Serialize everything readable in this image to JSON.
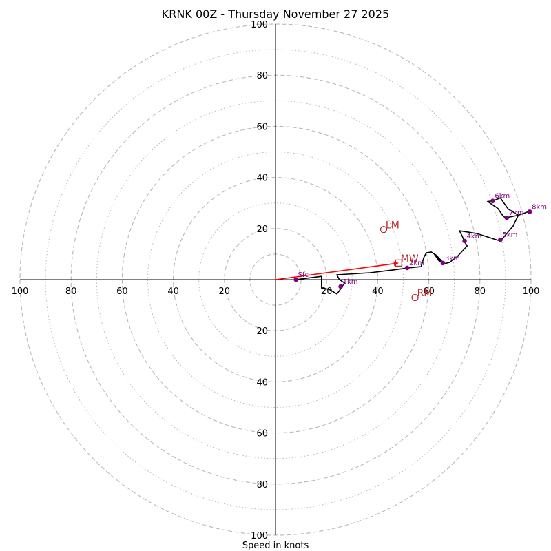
{
  "chart_data": {
    "type": "hodograph",
    "title": "KRNK 00Z - Thursday November 27 2025",
    "xlabel": "Speed in knots",
    "range": [
      -100,
      100
    ],
    "rings_dashed": [
      10,
      20,
      40,
      60,
      80,
      100
    ],
    "rings_dotted": [
      30,
      50,
      70,
      90
    ],
    "x_ticks": [
      {
        "value": -100,
        "label": "100"
      },
      {
        "value": -80,
        "label": "80"
      },
      {
        "value": -60,
        "label": "60"
      },
      {
        "value": -40,
        "label": "40"
      },
      {
        "value": -20,
        "label": "20"
      },
      {
        "value": 20,
        "label": "20"
      },
      {
        "value": 40,
        "label": "40"
      },
      {
        "value": 60,
        "label": "60"
      },
      {
        "value": 80,
        "label": "80"
      },
      {
        "value": 100,
        "label": "100"
      }
    ],
    "y_ticks": [
      {
        "value": 100,
        "label": "100"
      },
      {
        "value": 80,
        "label": "80"
      },
      {
        "value": 60,
        "label": "60"
      },
      {
        "value": 40,
        "label": "40"
      },
      {
        "value": 20,
        "label": "20"
      },
      {
        "value": -20,
        "label": "20"
      },
      {
        "value": -40,
        "label": "40"
      },
      {
        "value": -60,
        "label": "60"
      },
      {
        "value": -80,
        "label": "80"
      },
      {
        "value": -100,
        "label": "100"
      }
    ],
    "trace": [
      [
        8,
        0
      ],
      [
        12,
        0.5
      ],
      [
        18,
        1.3
      ],
      [
        18,
        -3.3
      ],
      [
        21,
        -3.8
      ],
      [
        24,
        -5.6
      ],
      [
        25,
        -4.3
      ],
      [
        27,
        -1.3
      ],
      [
        25,
        0
      ],
      [
        24,
        1.9
      ],
      [
        37,
        2.7
      ],
      [
        46,
        3.8
      ],
      [
        52,
        4.6
      ],
      [
        57,
        5.1
      ],
      [
        58,
        8.6
      ],
      [
        59,
        10.5
      ],
      [
        61,
        10.8
      ],
      [
        63,
        9.5
      ],
      [
        66,
        6.2
      ],
      [
        65,
        6.7
      ],
      [
        62,
        10.2
      ],
      [
        64,
        7.3
      ],
      [
        66,
        6.2
      ],
      [
        68,
        6.7
      ],
      [
        71,
        8.9
      ],
      [
        75,
        13.2
      ],
      [
        74,
        14.8
      ],
      [
        73,
        17.2
      ],
      [
        72,
        19.1
      ],
      [
        79,
        18.0
      ],
      [
        88,
        15.1
      ],
      [
        93,
        21.0
      ],
      [
        95,
        25.2
      ],
      [
        99,
        26.6
      ],
      [
        95,
        25.2
      ],
      [
        90,
        24.2
      ],
      [
        89,
        25.0
      ],
      [
        87,
        27.9
      ],
      [
        83,
        30.6
      ],
      [
        85,
        30.8
      ],
      [
        88,
        32.0
      ],
      [
        91,
        27.7
      ],
      [
        95,
        25.2
      ]
    ],
    "height_markers": [
      {
        "label": "Sfc",
        "u": 8,
        "v": 0
      },
      {
        "label": "1km",
        "u": 25.5,
        "v": -2.7
      },
      {
        "label": "2km",
        "u": 51.5,
        "v": 4.6
      },
      {
        "label": "3km",
        "u": 65.5,
        "v": 6.5
      },
      {
        "label": "4km",
        "u": 74,
        "v": 15.1
      },
      {
        "label": "5km",
        "u": 88,
        "v": 15.6
      },
      {
        "label": "6km",
        "u": 85,
        "v": 30.8
      },
      {
        "label": "7km",
        "u": 90.5,
        "v": 24.2
      },
      {
        "label": "8km",
        "u": 99.5,
        "v": 26.6
      }
    ],
    "motions": [
      {
        "label": "LM",
        "u": 42.3,
        "v": 19.6,
        "marker": "circle"
      },
      {
        "label": "MW",
        "u": 48.2,
        "v": 6.5,
        "marker": "square"
      },
      {
        "label": "RM",
        "u": 54.6,
        "v": -7.0,
        "marker": "circle"
      }
    ],
    "shear_arrow": {
      "from": [
        0,
        0
      ],
      "to": [
        48.2,
        6.5
      ]
    },
    "colors": {
      "trace": "#000000",
      "markers": "#800080",
      "motion": "#c0282d",
      "arrow": "#ff0000",
      "grid": "#b8b8b8"
    }
  }
}
